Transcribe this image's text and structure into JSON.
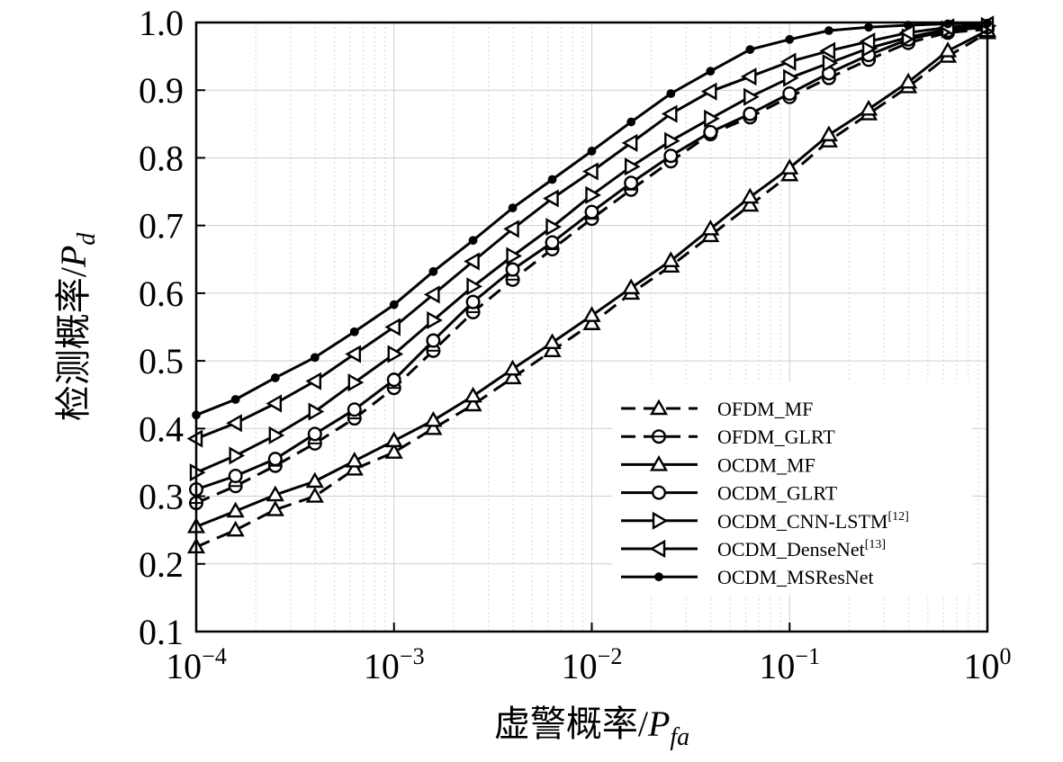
{
  "chart_data": {
    "type": "line",
    "xscale": "log",
    "xlim": [
      0.0001,
      1
    ],
    "ylim": [
      0.1,
      1.0
    ],
    "xlabel": "虚警概率/P_fa",
    "ylabel": "检测概率/P_d",
    "xlabel_main": "虚警概率/",
    "xlabel_var": "P",
    "xlabel_sub": "fa",
    "ylabel_main": "检测概率/",
    "ylabel_var": "P",
    "ylabel_sub": "d",
    "x_tick_labels": [
      {
        "value": 0.0001,
        "base": "10",
        "exp": "−4"
      },
      {
        "value": 0.001,
        "base": "10",
        "exp": "−3"
      },
      {
        "value": 0.01,
        "base": "10",
        "exp": "−2"
      },
      {
        "value": 0.1,
        "base": "10",
        "exp": "−1"
      },
      {
        "value": 1,
        "base": "10",
        "exp": "0"
      }
    ],
    "y_ticks": [
      0.1,
      0.2,
      0.3,
      0.4,
      0.5,
      0.6,
      0.7,
      0.8,
      0.9,
      1.0
    ],
    "y_tick_labels": [
      "0.1",
      "0.2",
      "0.3",
      "0.4",
      "0.5",
      "0.6",
      "0.7",
      "0.8",
      "0.9",
      "1.0"
    ],
    "grid": true,
    "legend_position": "lower-right",
    "x": [
      0.0001,
      0.000158,
      0.000251,
      0.000398,
      0.000631,
      0.001,
      0.00158,
      0.00251,
      0.00398,
      0.00631,
      0.01,
      0.0158,
      0.0251,
      0.0398,
      0.0631,
      0.1,
      0.158,
      0.251,
      0.398,
      0.631,
      1
    ],
    "series": [
      {
        "name": "OFDM_MF",
        "label": "OFDM_MF",
        "sup": "",
        "dashed": true,
        "marker": "triangle-up",
        "values": [
          0.225,
          0.25,
          0.28,
          0.3,
          0.34,
          0.365,
          0.4,
          0.435,
          0.475,
          0.515,
          0.555,
          0.6,
          0.64,
          0.685,
          0.73,
          0.775,
          0.825,
          0.865,
          0.905,
          0.95,
          0.985
        ]
      },
      {
        "name": "OFDM_GLRT",
        "label": "OFDM_GLRT",
        "sup": "",
        "dashed": true,
        "marker": "circle-bar",
        "values": [
          0.29,
          0.315,
          0.345,
          0.378,
          0.415,
          0.46,
          0.515,
          0.572,
          0.62,
          0.665,
          0.71,
          0.753,
          0.795,
          0.835,
          0.86,
          0.89,
          0.918,
          0.945,
          0.97,
          0.985,
          0.99
        ]
      },
      {
        "name": "OCDM_MF",
        "label": "OCDM_MF",
        "sup": "",
        "dashed": false,
        "marker": "triangle-up",
        "values": [
          0.255,
          0.278,
          0.302,
          0.322,
          0.352,
          0.382,
          0.412,
          0.448,
          0.488,
          0.527,
          0.567,
          0.608,
          0.648,
          0.695,
          0.742,
          0.785,
          0.834,
          0.872,
          0.912,
          0.958,
          0.988
        ]
      },
      {
        "name": "OCDM_GLRT",
        "label": "OCDM_GLRT",
        "sup": "",
        "dashed": false,
        "marker": "circle",
        "values": [
          0.31,
          0.33,
          0.355,
          0.392,
          0.428,
          0.472,
          0.53,
          0.587,
          0.635,
          0.675,
          0.72,
          0.763,
          0.803,
          0.838,
          0.865,
          0.895,
          0.925,
          0.952,
          0.975,
          0.988,
          0.993
        ]
      },
      {
        "name": "OCDM_CNN-LSTM",
        "label": "OCDM_CNN-LSTM",
        "sup": "[12]",
        "dashed": false,
        "marker": "triangle-right",
        "values": [
          0.335,
          0.36,
          0.39,
          0.425,
          0.468,
          0.51,
          0.56,
          0.61,
          0.655,
          0.698,
          0.745,
          0.787,
          0.825,
          0.858,
          0.89,
          0.918,
          0.94,
          0.962,
          0.978,
          0.99,
          0.995
        ]
      },
      {
        "name": "OCDM_DenseNet",
        "label": "OCDM_DenseNet",
        "sup": "[13]",
        "dashed": false,
        "marker": "triangle-left",
        "values": [
          0.385,
          0.408,
          0.437,
          0.47,
          0.51,
          0.55,
          0.598,
          0.647,
          0.695,
          0.74,
          0.78,
          0.822,
          0.865,
          0.898,
          0.92,
          0.942,
          0.958,
          0.972,
          0.985,
          0.993,
          0.997
        ]
      },
      {
        "name": "OCDM_MSResNet",
        "label": "OCDM_MSResNet",
        "sup": "",
        "dashed": false,
        "marker": "dot",
        "values": [
          0.42,
          0.443,
          0.475,
          0.505,
          0.543,
          0.583,
          0.632,
          0.678,
          0.726,
          0.768,
          0.81,
          0.853,
          0.895,
          0.928,
          0.96,
          0.975,
          0.988,
          0.993,
          0.996,
          0.998,
          0.999
        ]
      }
    ]
  }
}
